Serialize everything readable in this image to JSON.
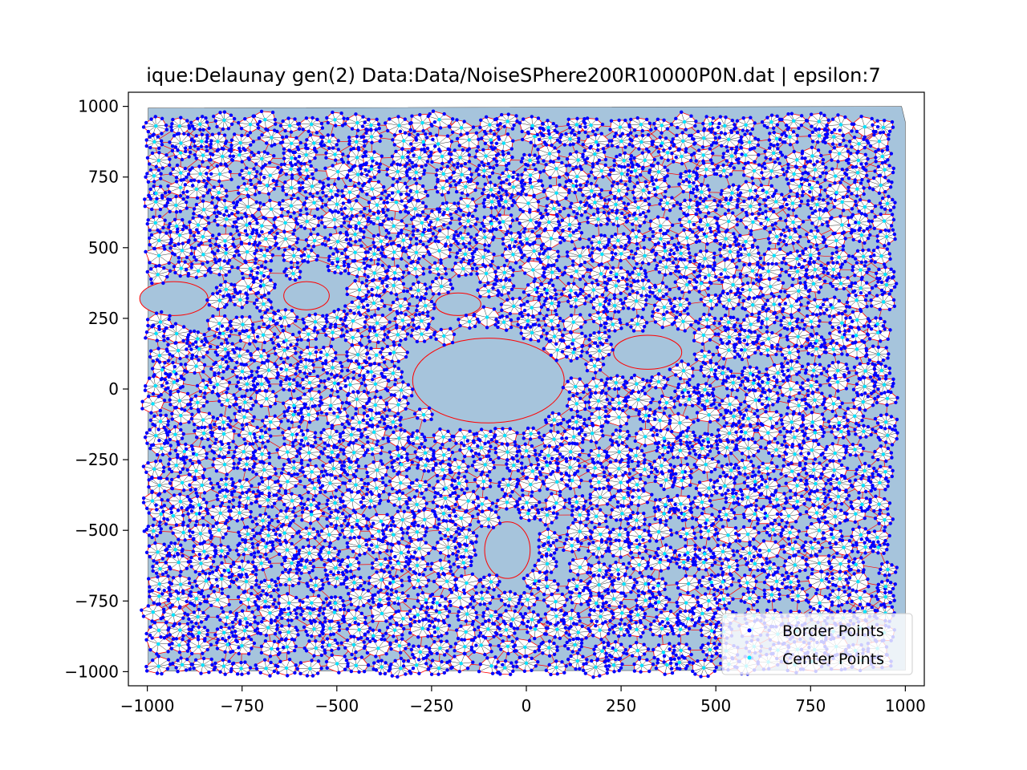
{
  "chart_data": {
    "type": "scatter",
    "title": "ique:Delaunay  gen(2) Data:Data/NoiseSPhere200R10000P0N.dat | epsilon:7",
    "xlabel": "",
    "ylabel": "",
    "xlim": [
      -1050,
      1050
    ],
    "ylim": [
      -1050,
      1050
    ],
    "x_ticks": [
      -1000,
      -750,
      -500,
      -250,
      0,
      250,
      500,
      750,
      1000
    ],
    "x_tick_labels": [
      "−1000",
      "−750",
      "−500",
      "−250",
      "0",
      "250",
      "500",
      "750",
      "1000"
    ],
    "y_ticks": [
      1000,
      750,
      500,
      250,
      0,
      -250,
      -500,
      -750,
      -1000
    ],
    "y_tick_labels": [
      "1000",
      "750",
      "500",
      "250",
      "0",
      "−250",
      "−500",
      "−750",
      "−1000"
    ],
    "grid": false,
    "legend_position": "bottom-right",
    "data_extent": {
      "x": [
        -1000,
        1000
      ],
      "y": [
        -1000,
        1000
      ]
    },
    "holes": [
      {
        "center": [
          -100,
          30
        ],
        "radius_x": 200,
        "radius_y": 150
      },
      {
        "center": [
          320,
          130
        ],
        "radius_x": 90,
        "radius_y": 60
      },
      {
        "center": [
          -50,
          -570
        ],
        "radius_x": 60,
        "radius_y": 100
      },
      {
        "center": [
          -180,
          300
        ],
        "radius_x": 60,
        "radius_y": 40
      },
      {
        "center": [
          -930,
          320
        ],
        "radius_x": 90,
        "radius_y": 60
      },
      {
        "center": [
          -580,
          330
        ],
        "radius_x": 60,
        "radius_y": 50
      }
    ],
    "series": [
      {
        "name": "Border Points",
        "color": "#0000ff",
        "marker": "dot"
      },
      {
        "name": "Center Points",
        "color": "#00e5ff",
        "marker": "dot"
      }
    ],
    "colors": {
      "background_fill": "#a6c4dc",
      "border_edges": "#ff0000",
      "center_edges": "#000000",
      "triangle_fill": "#ffffff"
    }
  }
}
